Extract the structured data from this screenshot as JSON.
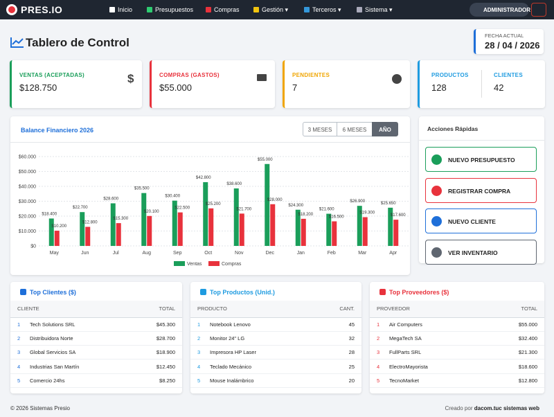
{
  "nav": {
    "brand": "PRES.IO",
    "items": [
      "Inicio",
      "Presupuestos",
      "Compras",
      "Gestión",
      "Terceros",
      "Sistema"
    ],
    "user": "ADMINISTRADOR"
  },
  "header": {
    "title": "Tablero de Control",
    "date_label": "FECHA ACTUAL",
    "date": "28 / 04 / 2026"
  },
  "cards": [
    {
      "label": "VENTAS (ACEPTADAS)",
      "value": "$128.750"
    },
    {
      "label": "COMPRAS (GASTOS)",
      "value": "$55.000"
    },
    {
      "label": "PENDIENTES",
      "value": "7"
    },
    {
      "label": "PRODUCTOS",
      "value": "128"
    },
    {
      "label": "CLIENTES",
      "value": "42"
    }
  ],
  "chart_controls": [
    "3 MESES",
    "6 MESES",
    "AÑO"
  ],
  "chart_data": {
    "type": "bar",
    "title": "Balance Financiero 2026",
    "categories": [
      "May",
      "Jun",
      "Jul",
      "Aug",
      "Sep",
      "Oct",
      "Nov",
      "Dec",
      "Jan",
      "Feb",
      "Mar",
      "Apr"
    ],
    "series": [
      {
        "name": "Ventas",
        "color": "#1a9e5a",
        "values": [
          18400,
          22700,
          28600,
          35500,
          30400,
          42800,
          38600,
          55000,
          24300,
          21600,
          26900,
          25650
        ],
        "value_labels": [
          "$18.400",
          "$22.700",
          "$28.600",
          "$35.500",
          "$30.400",
          "$42.800",
          "$38.600",
          "$55.000",
          "$24.300",
          "$21.600",
          "$26.900",
          "$25.650"
        ]
      },
      {
        "name": "Compras",
        "color": "#e8323c",
        "values": [
          10200,
          12800,
          15300,
          20100,
          22500,
          25200,
          21700,
          28000,
          18200,
          16500,
          19300,
          17600
        ],
        "value_labels": [
          "$10.200",
          "$12.800",
          "$15.300",
          "$20.100",
          "$22.500",
          "$25.200",
          "$21.700",
          "$28.000",
          "$18.200",
          "$16.500",
          "$19.300",
          "$17.600"
        ]
      }
    ],
    "ylim": [
      0,
      60000
    ],
    "yticks": [
      {
        "value": 0,
        "label": "$0"
      },
      {
        "value": 10000,
        "label": "$10.000"
      },
      {
        "value": 20000,
        "label": "$20.000"
      },
      {
        "value": 30000,
        "label": "$30.000"
      },
      {
        "value": 40000,
        "label": "$40.000"
      },
      {
        "value": 50000,
        "label": "$50.000"
      },
      {
        "value": 60000,
        "label": "$60.000"
      }
    ],
    "grid": true,
    "legend": "bottom"
  },
  "actions": {
    "title": "Acciones Rápidas",
    "items": [
      "NUEVO PRESUPUESTO",
      "REGISTRAR COMPRA",
      "NUEVO CLIENTE",
      "VER INVENTARIO"
    ]
  },
  "tables": [
    {
      "title": "Top Clientes ($)",
      "columns": [
        "CLIENTE",
        "TOTAL"
      ],
      "rows": [
        [
          "1",
          "Tech Solutions SRL",
          "$45.300"
        ],
        [
          "2",
          "Distribuidora Norte",
          "$28.700"
        ],
        [
          "3",
          "Global Servicios SA",
          "$18.900"
        ],
        [
          "4",
          "Industrias San Martín",
          "$12.450"
        ],
        [
          "5",
          "Comercio 24hs",
          "$8.250"
        ]
      ]
    },
    {
      "title": "Top Productos (Unid.)",
      "columns": [
        "PRODUCTO",
        "CANT."
      ],
      "rows": [
        [
          "1",
          "Notebook Lenovo",
          "45"
        ],
        [
          "2",
          "Monitor 24\" LG",
          "32"
        ],
        [
          "3",
          "Impresora HP Laser",
          "28"
        ],
        [
          "4",
          "Teclado Mecánico",
          "25"
        ],
        [
          "5",
          "Mouse Inalámbrico",
          "20"
        ]
      ]
    },
    {
      "title": "Top Proveedores ($)",
      "columns": [
        "PROVEEDOR",
        "TOTAL"
      ],
      "rows": [
        [
          "1",
          "Air Computers",
          "$55.000"
        ],
        [
          "2",
          "MegaTech SA",
          "$32.400"
        ],
        [
          "3",
          "FullParts SRL",
          "$21.300"
        ],
        [
          "4",
          "ElectroMayorista",
          "$18.600"
        ],
        [
          "5",
          "TecnoMarket",
          "$12.800"
        ]
      ]
    }
  ],
  "footer": {
    "left": "© 2026 Sistemas Presio",
    "credit_prefix": "Creado por",
    "credit_name": "dacom.tuc sistemas web"
  }
}
